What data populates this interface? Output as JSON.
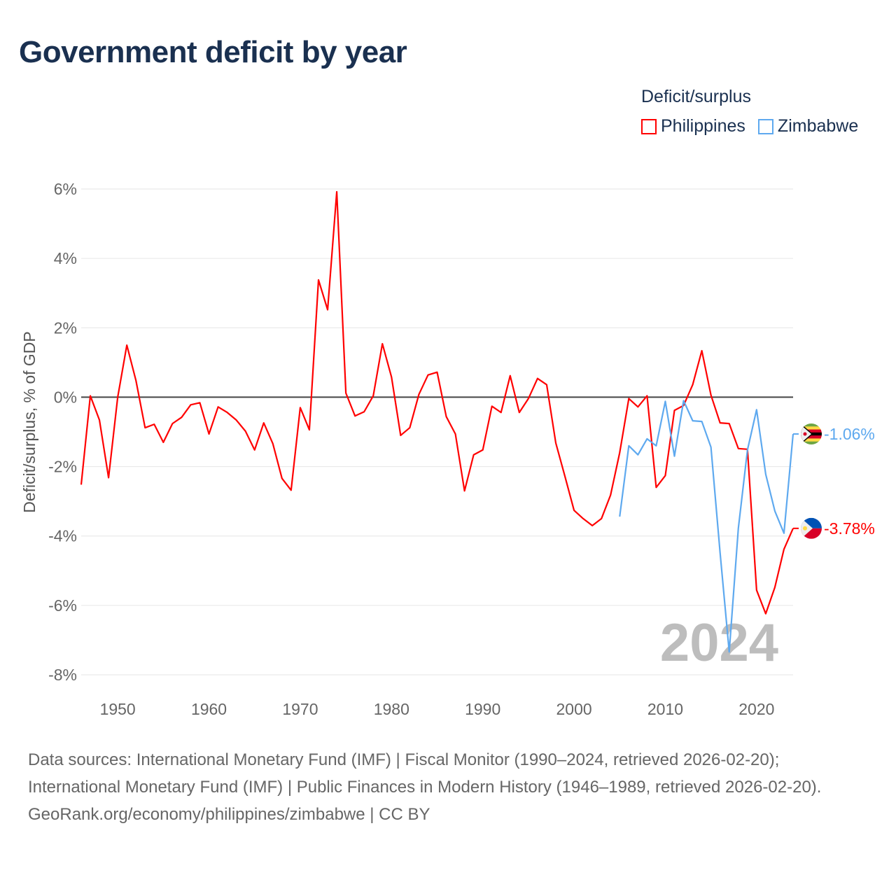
{
  "title": "Government deficit by year",
  "legend": {
    "title": "Deficit/surplus",
    "items": [
      "Philippines",
      "Zimbabwe"
    ]
  },
  "year_label": "2024",
  "footer": {
    "line1": "Data sources: International Monetary Fund (IMF) | Fiscal Monitor (1990–2024, retrieved 2026-02-20); International Monetary Fund (IMF) | Public Finances in Modern History (1946–1989, retrieved 2026-02-20).",
    "line2": "GeoRank.org/economy/philippines/zimbabwe | CC BY"
  },
  "chart_data": {
    "type": "line",
    "title": "Government deficit by year",
    "xlabel": "",
    "ylabel": "Deficit/surplus, % of GDP",
    "xlim": [
      1946,
      2024
    ],
    "ylim": [
      -8,
      6
    ],
    "xticks": [
      1950,
      1960,
      1970,
      1980,
      1990,
      2000,
      2010,
      2020
    ],
    "yticks": [
      6,
      4,
      2,
      0,
      -2,
      -4,
      -6,
      -8
    ],
    "ytick_labels": [
      "6%",
      "4%",
      "2%",
      "0%",
      "-2%",
      "-4%",
      "-6%",
      "-8%"
    ],
    "grid": true,
    "legend_position": "top-right",
    "series": [
      {
        "name": "Philippines",
        "color": "#ff0000",
        "start": 1946,
        "end_label": "-3.78%",
        "icon": "philippines-flag-icon",
        "values": [
          -2.52,
          0.04,
          -0.66,
          -2.32,
          0,
          1.5,
          0.48,
          -0.88,
          -0.78,
          -1.3,
          -0.76,
          -0.58,
          -0.22,
          -0.16,
          -1.06,
          -0.28,
          -0.44,
          -0.66,
          -0.98,
          -1.52,
          -0.74,
          -1.34,
          -2.34,
          -2.68,
          -0.3,
          -0.94,
          3.38,
          2.52,
          5.92,
          0.12,
          -0.54,
          -0.42,
          0.04,
          1.54,
          0.58,
          -1.1,
          -0.88,
          0.08,
          0.64,
          0.72,
          -0.56,
          -1.06,
          -2.7,
          -1.66,
          -1.52,
          -0.26,
          -0.44,
          0.62,
          -0.44,
          -0.04,
          0.54,
          0.36,
          -1.32,
          -2.28,
          -3.26,
          -3.5,
          -3.7,
          -3.5,
          -2.82,
          -1.6,
          -0.04,
          -0.28,
          0.04,
          -2.6,
          -2.26,
          -0.38,
          -0.24,
          0.36,
          1.34,
          0.06,
          -0.74,
          -0.76,
          -1.48,
          -1.5,
          -5.56,
          -6.24,
          -5.48,
          -4.38,
          -3.78
        ]
      },
      {
        "name": "Zimbabwe",
        "color": "#5ea9ef",
        "start": 2005,
        "end_label": "-1.06%",
        "icon": "zimbabwe-flag-icon",
        "values": [
          -3.44,
          -1.4,
          -1.66,
          -1.2,
          -1.4,
          -0.12,
          -1.7,
          -0.1,
          -0.68,
          -0.7,
          -1.44,
          -4.48,
          -7.34,
          -3.78,
          -1.52,
          -0.36,
          -2.22,
          -3.28,
          -3.92,
          -1.06
        ]
      }
    ]
  }
}
